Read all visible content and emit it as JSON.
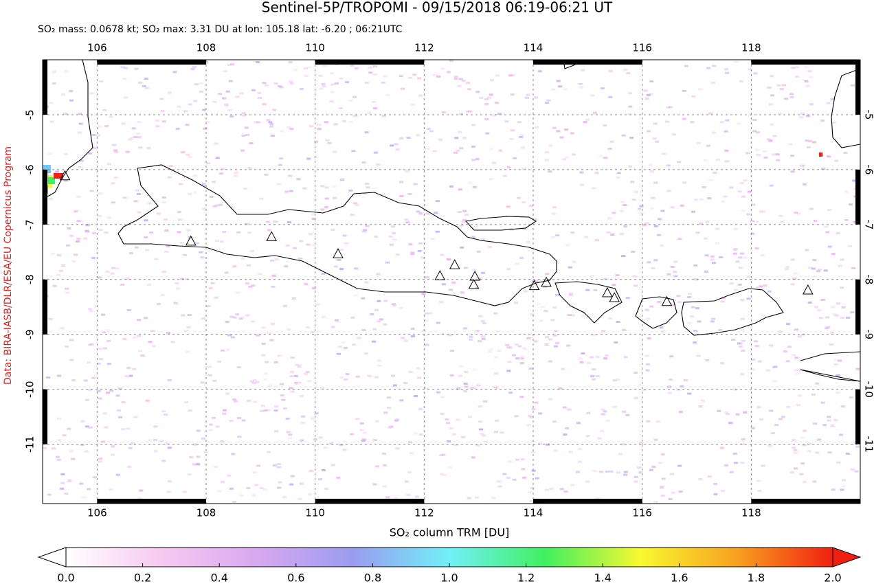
{
  "header": {
    "title": "Sentinel-5P/TROPOMI - 09/15/2018 06:19-06:21 UT",
    "subtitle": "SO₂ mass: 0.0678 kt; SO₂ max: 3.31 DU at lon: 105.18 lat: -6.20 ; 06:21UTC"
  },
  "credit": "Data: BIRA-IASB/DLR/ESA/EU Copernicus Program",
  "map": {
    "xlim": [
      105,
      120
    ],
    "ylim": [
      -12.08,
      -4
    ],
    "xticks": [
      106,
      108,
      110,
      112,
      114,
      116,
      118
    ],
    "yticks": [
      -5,
      -6,
      -7,
      -8,
      -9,
      -10,
      -11
    ],
    "grid": true,
    "volcanoes": {
      "lon": [
        105.41,
        107.72,
        109.2,
        110.42,
        112.29,
        112.56,
        112.93,
        112.91,
        114.02,
        114.24,
        115.36,
        115.49,
        116.45,
        119.04
      ],
      "lat": [
        -6.11,
        -7.3,
        -7.22,
        -7.53,
        -7.93,
        -7.73,
        -7.94,
        -8.09,
        -8.11,
        -8.05,
        -8.24,
        -8.33,
        -8.4,
        -8.19
      ]
    }
  },
  "colorbar": {
    "label": "SO₂ column TRM [DU]",
    "range": [
      0,
      2
    ],
    "ticks": [
      {
        "value": 0,
        "label": "0.0"
      },
      0.2,
      0.4,
      0.6,
      0.8,
      {
        "value": 1,
        "label": "1.0"
      },
      1.2,
      1.4,
      1.6,
      1.8,
      {
        "value": 2,
        "label": "2.0"
      }
    ],
    "colors": [
      "#ffffff",
      "#f7c8f0",
      "#d8a8f0",
      "#9a9cf0",
      "#70f0f8",
      "#40f060",
      "#f8f830",
      "#f8a020",
      "#f02010"
    ]
  }
}
